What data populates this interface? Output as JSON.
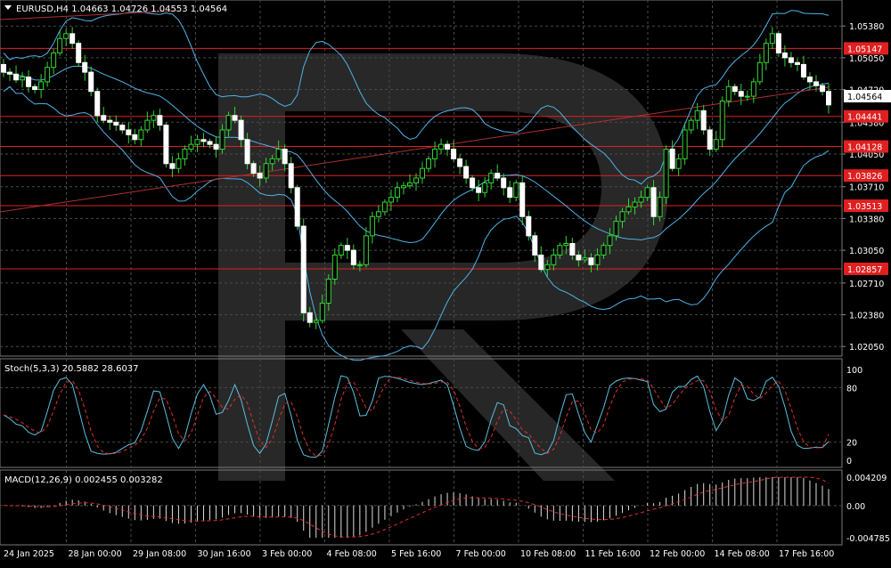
{
  "main": {
    "header": "EURUSD,H4  1.04663 1.04726 1.04553 1.04564",
    "current_price": "1.04564",
    "y_ticks": [
      "1.05380",
      "1.05050",
      "1.04720",
      "1.04380",
      "1.04050",
      "1.03710",
      "1.03380",
      "1.03050",
      "1.02710",
      "1.02380",
      "1.02050"
    ],
    "level_labels": [
      "1.05147",
      "1.04441",
      "1.04128",
      "1.03826",
      "1.03513",
      "1.02857"
    ]
  },
  "stoch": {
    "header": "Stoch(5,3,3) 20.5882 28.6037",
    "y_ticks": [
      "100",
      "80",
      "20",
      "0"
    ]
  },
  "macd": {
    "header": "MACD(12,26,9) 0.002455 0.003282",
    "y_ticks": [
      "0.004209",
      "0.00",
      "-0.004785"
    ]
  },
  "x_ticks": [
    "24 Jan 2025",
    "28 Jan 00:00",
    "29 Jan 08:00",
    "30 Jan 16:00",
    "3 Feb 00:00",
    "4 Feb 08:00",
    "5 Feb 16:00",
    "7 Feb 00:00",
    "10 Feb 08:00",
    "11 Feb 16:00",
    "12 Feb 00:00",
    "14 Feb 08:00",
    "17 Feb 16:00"
  ],
  "chart_data": [
    {
      "type": "candlestick",
      "symbol": "EURUSD",
      "timeframe": "H4",
      "ohlc_last": {
        "open": 1.04663,
        "high": 1.04726,
        "low": 1.04553,
        "close": 1.04564
      },
      "ylim": [
        1.0195,
        1.0565
      ],
      "indicators": [
        "Bollinger Bands",
        "Trendline"
      ],
      "horizontal_levels": [
        1.05147,
        1.04441,
        1.04128,
        1.03826,
        1.03513,
        1.02857
      ],
      "close": [
        1.049,
        1.0488,
        1.0482,
        1.0485,
        1.0475,
        1.0472,
        1.048,
        1.0495,
        1.051,
        1.0525,
        1.053,
        1.052,
        1.05,
        1.049,
        1.047,
        1.0445,
        1.044,
        1.0438,
        1.0435,
        1.043,
        1.0425,
        1.042,
        1.043,
        1.044,
        1.0445,
        1.0435,
        1.0395,
        1.039,
        1.04,
        1.041,
        1.0415,
        1.042,
        1.0418,
        1.0415,
        1.041,
        1.043,
        1.0445,
        1.044,
        1.042,
        1.0395,
        1.0385,
        1.038,
        1.0395,
        1.04,
        1.041,
        1.0395,
        1.037,
        1.033,
        1.024,
        1.023,
        1.0232,
        1.025,
        1.0275,
        1.03,
        1.031,
        1.0305,
        1.029,
        1.029,
        1.032,
        1.034,
        1.0345,
        1.0355,
        1.036,
        1.037,
        1.0372,
        1.0375,
        1.038,
        1.039,
        1.04,
        1.041,
        1.0415,
        1.041,
        1.04,
        1.0392,
        1.038,
        1.037,
        1.0365,
        1.0375,
        1.0385,
        1.038,
        1.037,
        1.036,
        1.0375,
        1.034,
        1.032,
        1.03,
        1.0285,
        1.029,
        1.03,
        1.031,
        1.0312,
        1.03,
        1.0295,
        1.0297,
        1.029,
        1.03,
        1.031,
        1.032,
        1.0335,
        1.0345,
        1.035,
        1.0355,
        1.036,
        1.037,
        1.034,
        1.036,
        1.041,
        1.039,
        1.04,
        1.043,
        1.044,
        1.045,
        1.043,
        1.041,
        1.042,
        1.046,
        1.0475,
        1.047,
        1.0465,
        1.0465,
        1.048,
        1.05,
        1.052,
        1.053,
        1.051,
        1.0505,
        1.05,
        1.0498,
        1.0485,
        1.048,
        1.0476,
        1.047,
        1.0456
      ]
    },
    {
      "type": "line",
      "name": "Stoch(5,3,3)",
      "main": 20.5882,
      "signal": 28.6037,
      "ylim": [
        0,
        100
      ],
      "levels": [
        20,
        80
      ]
    },
    {
      "type": "bar",
      "name": "MACD(12,26,9)",
      "macd": 0.002455,
      "signal": 0.003282,
      "ylim": [
        -0.004785,
        0.004209
      ]
    }
  ]
}
